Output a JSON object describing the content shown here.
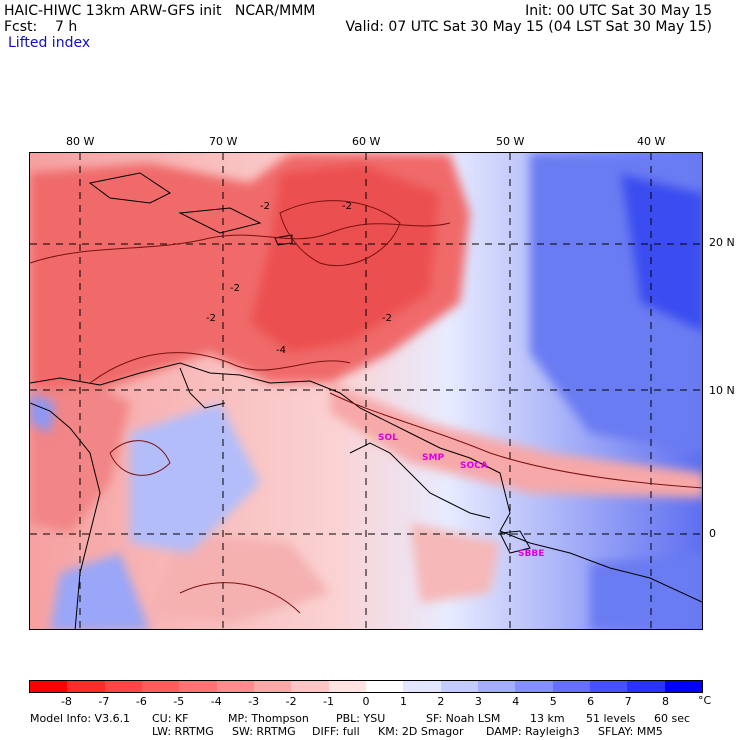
{
  "header": {
    "line1_left": "HAIC-HIWC 13km ARW-GFS init   NCAR/MMM",
    "line1_right": "Init: 00 UTC Sat 30 May 15",
    "line2_left": "Fcst:    7 h",
    "line2_right": "Valid: 07 UTC Sat 30 May 15 (04 LST Sat 30 May 15)",
    "field_name": "Lifted index"
  },
  "map": {
    "lon_labels": [
      "80 W",
      "70 W",
      "60 W",
      "50 W",
      "40 W"
    ],
    "lat_labels": [
      "20 N",
      "10 N",
      "0"
    ],
    "contour_labels": [
      "-2",
      "-2",
      "-2",
      "-2",
      "-4",
      "-2"
    ],
    "station_labels": [
      "SOL",
      "SMP",
      "SOCA",
      "SBBE"
    ],
    "colors": {
      "unstable": "#f25c5c",
      "neutral": "#ffffff",
      "stable": "#4a5fe8"
    }
  },
  "colorbar": {
    "ticks": [
      "-8",
      "-7",
      "-6",
      "-5",
      "-4",
      "-3",
      "-2",
      "-1",
      "0",
      "1",
      "2",
      "3",
      "4",
      "5",
      "6",
      "7",
      "8"
    ],
    "unit": "°C",
    "colors": [
      "#ff0000",
      "#ff2a2a",
      "#ff4545",
      "#ff5c5c",
      "#ff7373",
      "#ff8c8c",
      "#ffa8a8",
      "#ffc4c4",
      "#ffe2e2",
      "#ffffff",
      "#e2e6ff",
      "#c4ccff",
      "#a3aeff",
      "#8590ff",
      "#6670ff",
      "#4752ff",
      "#2833ff",
      "#0000ff"
    ]
  },
  "footer": {
    "model_info": "Model Info: V3.6.1",
    "cu": "CU: KF",
    "mp": "MP: Thompson",
    "pbl": "PBL: YSU",
    "sf": "SF: Noah LSM",
    "res": "13 km",
    "levels": "51 levels",
    "dt": "60 sec",
    "lw": "LW: RRTMG",
    "sw": "SW: RRTMG",
    "diff": "DIFF: full",
    "km": "KM: 2D Smagor",
    "damp": "DAMP: Rayleigh3",
    "sflay": "SFLAY: MM5"
  }
}
